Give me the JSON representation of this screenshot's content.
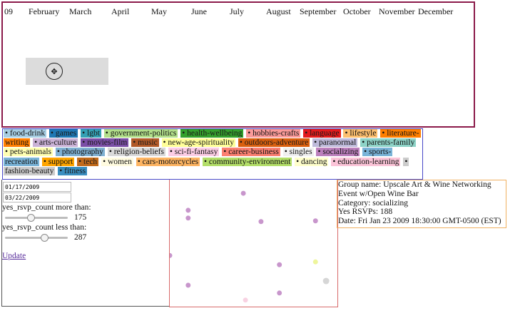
{
  "timeline": {
    "months": [
      "09",
      "February",
      "March",
      "April",
      "May",
      "June",
      "July",
      "August",
      "September",
      "October",
      "November",
      "December"
    ]
  },
  "categories": [
    {
      "label": "food-drink",
      "color": "#a6cee3"
    },
    {
      "label": "games",
      "color": "#1f78b4"
    },
    {
      "label": "lgbt",
      "color": "#33a0b4"
    },
    {
      "label": "government-politics",
      "color": "#b2df8a"
    },
    {
      "label": "health-wellbeing",
      "color": "#33a02c"
    },
    {
      "label": "hobbies-crafts",
      "color": "#fb9a99"
    },
    {
      "label": "language",
      "color": "#e31a1c"
    },
    {
      "label": "lifestyle",
      "color": "#fdbf6f"
    },
    {
      "label": "literature-writing",
      "color": "#ff7f00"
    },
    {
      "label": "arts-culture",
      "color": "#cab2d6"
    },
    {
      "label": "movies-film",
      "color": "#7b4fa6"
    },
    {
      "label": "music",
      "color": "#b15928"
    },
    {
      "label": "new-age-spirituality",
      "color": "#ffff99"
    },
    {
      "label": "outdoors-adventure",
      "color": "#d95f0e"
    },
    {
      "label": "paranormal",
      "color": "#bebada"
    },
    {
      "label": "parents-family",
      "color": "#8dd3c7"
    },
    {
      "label": "pets-animals",
      "color": "#ffffb3"
    },
    {
      "label": "photography",
      "color": "#80b1d3"
    },
    {
      "label": "religion-beliefs",
      "color": "#d9d9d9"
    },
    {
      "label": "sci-fi-fantasy",
      "color": "#fccde5"
    },
    {
      "label": "career-business",
      "color": "#fb8072"
    },
    {
      "label": "singles",
      "color": "#f0f0f0"
    },
    {
      "label": "socializing",
      "color": "#bc80bd"
    },
    {
      "label": "sports-recreation",
      "color": "#7ab4d8"
    },
    {
      "label": "support",
      "color": "#ffa500"
    },
    {
      "label": "tech",
      "color": "#c26a1a"
    },
    {
      "label": "women",
      "color": "#fffbe0"
    },
    {
      "label": "cars-motorcycles",
      "color": "#fdb462"
    },
    {
      "label": "community-environment",
      "color": "#b3de69"
    },
    {
      "label": "dancing",
      "color": "#ffffcc"
    },
    {
      "label": "education-learning",
      "color": "#fbc4d8"
    },
    {
      "label": "fashion-beauty",
      "color": "#cccccc"
    },
    {
      "label": "fitness",
      "color": "#3a8fc0"
    }
  ],
  "filters": {
    "start_date": "01/17/2009",
    "end_date": "03/22/2009",
    "min_label": "yes_rsvp_count more than:",
    "min_value": "175",
    "min_fraction": 0.41,
    "max_label": "yes_rsvp_count less than:",
    "max_value": "287",
    "max_fraction": 0.62,
    "update_label": "Update"
  },
  "scatter_points": [
    {
      "category": "socializing",
      "color": "#c896cc"
    },
    {
      "category": "socializing",
      "color": "#c896cc"
    },
    {
      "category": "socializing",
      "color": "#c896cc"
    },
    {
      "category": "socializing",
      "color": "#c896cc"
    },
    {
      "category": "socializing",
      "color": "#c896cc"
    },
    {
      "category": "socializing",
      "color": "#c896cc"
    },
    {
      "category": "socializing",
      "color": "#c896cc"
    },
    {
      "category": "socializing",
      "color": "#c896cc"
    },
    {
      "category": "new-age-spirituality",
      "color": "#eef59c"
    },
    {
      "category": "religion-beliefs",
      "color": "#d6d6d6"
    },
    {
      "category": "sci-fi-fantasy",
      "color": "#f8d2e2"
    }
  ],
  "details": {
    "group": "Group name: Upscale Art & Wine Networking",
    "event": "Event w/Open Wine Bar",
    "category": "Category: socializing",
    "rsvps": "Yes RSVPs: 188",
    "date": "Date: Fri Jan 23 2009 18:30:00 GMT-0500 (EST)"
  }
}
